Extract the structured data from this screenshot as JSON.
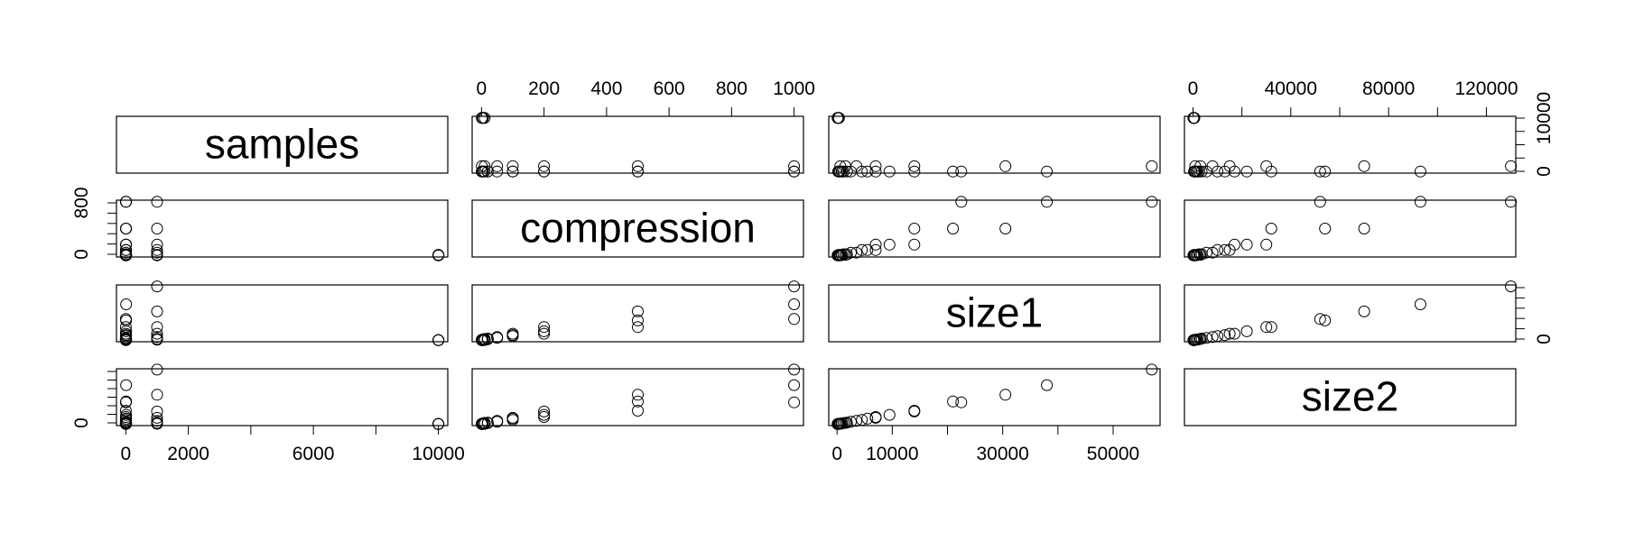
{
  "chart_data": {
    "type": "scatter",
    "subtype": "pairs-matrix",
    "variables": [
      "samples",
      "compression",
      "size1",
      "size2"
    ],
    "axes": {
      "samples": {
        "lim": [
          -300,
          10300
        ],
        "ticks": [
          0,
          2000,
          6000,
          10000
        ],
        "ticks_unlabeled": [
          4000,
          8000
        ]
      },
      "compression": {
        "lim": [
          -30,
          1030
        ],
        "ticks": [
          0,
          200,
          400,
          600,
          800,
          1000
        ]
      },
      "size1": {
        "lim": [
          -1500,
          58500
        ],
        "ticks": [
          0,
          10000,
          30000,
          50000
        ],
        "ticks_unlabeled": [
          20000,
          40000
        ]
      },
      "size2": {
        "lim": [
          -3500,
          132000
        ],
        "ticks": [
          0,
          40000,
          80000,
          120000
        ],
        "ticks_unlabeled": [
          20000,
          60000,
          100000
        ]
      }
    },
    "side_axes": {
      "samples_right": {
        "ticks": [
          0,
          10000
        ],
        "minor_count": 5
      },
      "compression_left": {
        "ticks": [
          0,
          800
        ],
        "minor_count": 6
      },
      "size1_right": {
        "ticks": [
          0
        ],
        "minor_count": 6
      },
      "size2_left": {
        "ticks": [
          0
        ],
        "minor_count": 7
      }
    },
    "grid": false,
    "legend": "none",
    "points": [
      {
        "samples": 1,
        "compression": 1,
        "size1": 200,
        "size2": 400
      },
      {
        "samples": 1,
        "compression": 2,
        "size1": 300,
        "size2": 600
      },
      {
        "samples": 1,
        "compression": 5,
        "size1": 500,
        "size2": 1000
      },
      {
        "samples": 1,
        "compression": 10,
        "size1": 800,
        "size2": 1600
      },
      {
        "samples": 1,
        "compression": 20,
        "size1": 1200,
        "size2": 2500
      },
      {
        "samples": 1,
        "compression": 50,
        "size1": 2500,
        "size2": 5500
      },
      {
        "samples": 1,
        "compression": 100,
        "size1": 4500,
        "size2": 10000
      },
      {
        "samples": 1,
        "compression": 200,
        "size1": 7000,
        "size2": 17000
      },
      {
        "samples": 1,
        "compression": 500,
        "size1": 14000,
        "size2": 32000
      },
      {
        "samples": 1,
        "compression": 1000,
        "size1": 22500,
        "size2": 52000
      },
      {
        "samples": 10,
        "compression": 1,
        "size1": 400,
        "size2": 700
      },
      {
        "samples": 10,
        "compression": 5,
        "size1": 900,
        "size2": 1800
      },
      {
        "samples": 10,
        "compression": 20,
        "size1": 1800,
        "size2": 3500
      },
      {
        "samples": 10,
        "compression": 100,
        "size1": 5500,
        "size2": 13000
      },
      {
        "samples": 10,
        "compression": 200,
        "size1": 9500,
        "size2": 22000
      },
      {
        "samples": 10,
        "compression": 500,
        "size1": 21000,
        "size2": 54000
      },
      {
        "samples": 10,
        "compression": 1000,
        "size1": 38000,
        "size2": 93000
      },
      {
        "samples": 1000,
        "compression": 1,
        "size1": 600,
        "size2": 900
      },
      {
        "samples": 1000,
        "compression": 10,
        "size1": 1500,
        "size2": 3000
      },
      {
        "samples": 1000,
        "compression": 50,
        "size1": 3500,
        "size2": 8000
      },
      {
        "samples": 1000,
        "compression": 100,
        "size1": 7000,
        "size2": 15000
      },
      {
        "samples": 1000,
        "compression": 200,
        "size1": 14000,
        "size2": 30000
      },
      {
        "samples": 1000,
        "compression": 500,
        "size1": 30500,
        "size2": 70000
      },
      {
        "samples": 1000,
        "compression": 1000,
        "size1": 57000,
        "size2": 130000
      },
      {
        "samples": 10000,
        "compression": 1,
        "size1": 100,
        "size2": 150
      },
      {
        "samples": 10000,
        "compression": 2,
        "size1": 150,
        "size2": 250
      },
      {
        "samples": 10000,
        "compression": 5,
        "size1": 250,
        "size2": 400
      },
      {
        "samples": 10000,
        "compression": 10,
        "size1": 350,
        "size2": 550
      }
    ]
  }
}
